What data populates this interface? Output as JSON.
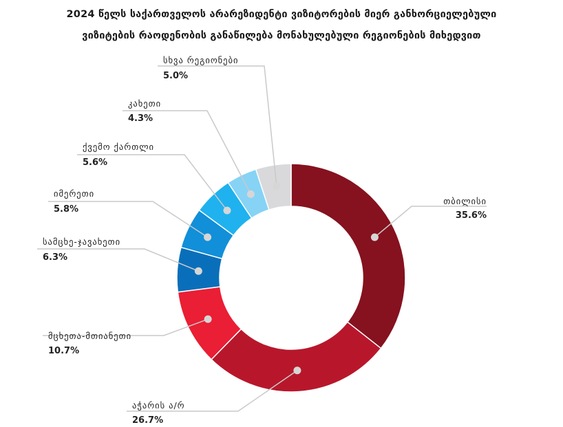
{
  "chart_data": {
    "type": "pie",
    "title": [
      "2024 წელს საქართველოს არარეზიდენტი ვიზიტორების მიერ განხორციელებული",
      "ვიზიტების რაოდენობის განაწილება მონახულებული რეგიონების მიხედვით"
    ],
    "slices": [
      {
        "label": "თბილისი",
        "value": 35.6,
        "display": "35.6%",
        "color": "#85121e"
      },
      {
        "label": "აჭარის ა/რ",
        "value": 26.7,
        "display": "26.7%",
        "color": "#b8172b"
      },
      {
        "label": "მცხეთა-მთიანეთი",
        "value": 10.7,
        "display": "10.7%",
        "color": "#ea1e34"
      },
      {
        "label": "სამცხე-ჯავახეთი",
        "value": 6.3,
        "display": "6.3%",
        "color": "#0a6fba"
      },
      {
        "label": "იმერეთი",
        "value": 5.8,
        "display": "5.8%",
        "color": "#118fd9"
      },
      {
        "label": "ქვემო ქართლი",
        "value": 5.6,
        "display": "5.6%",
        "color": "#1fb2ef"
      },
      {
        "label": "კახეთი",
        "value": 4.3,
        "display": "4.3%",
        "color": "#86d3f5"
      },
      {
        "label": "სხვა რეგიონები",
        "value": 5.0,
        "display": "5.0%",
        "color": "#d9d9dc"
      }
    ]
  }
}
